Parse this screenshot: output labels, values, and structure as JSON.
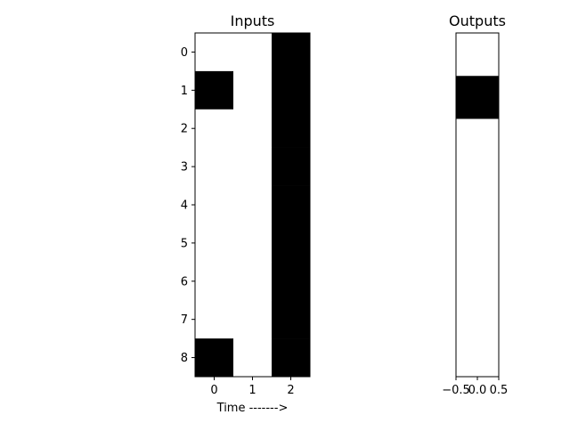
{
  "chart_data": [
    {
      "type": "heatmap",
      "title": "Inputs",
      "xlabel": "Time ------->",
      "ylabel": "",
      "x_ticks": [
        "0",
        "1",
        "2"
      ],
      "y_ticks": [
        "0",
        "1",
        "2",
        "3",
        "4",
        "5",
        "6",
        "7",
        "8"
      ],
      "colormap": {
        "0": "#ffffff",
        "1": "#000000"
      },
      "matrix": [
        [
          0,
          0,
          1
        ],
        [
          1,
          0,
          1
        ],
        [
          0,
          0,
          1
        ],
        [
          0,
          0,
          1
        ],
        [
          0,
          0,
          1
        ],
        [
          0,
          0,
          1
        ],
        [
          0,
          0,
          1
        ],
        [
          0,
          0,
          1
        ],
        [
          1,
          0,
          1
        ]
      ]
    },
    {
      "type": "heatmap",
      "title": "Outputs",
      "xlabel": "",
      "ylabel": "",
      "x_ticks": [
        "−0.5",
        "0.0",
        "0.5"
      ],
      "xlim": [
        -0.5,
        0.5
      ],
      "colormap": {
        "0": "#ffffff",
        "1": "#000000"
      },
      "matrix": [
        [
          0
        ],
        [
          1
        ],
        [
          0
        ],
        [
          0
        ],
        [
          0
        ],
        [
          0
        ],
        [
          0
        ],
        [
          0
        ]
      ]
    }
  ]
}
